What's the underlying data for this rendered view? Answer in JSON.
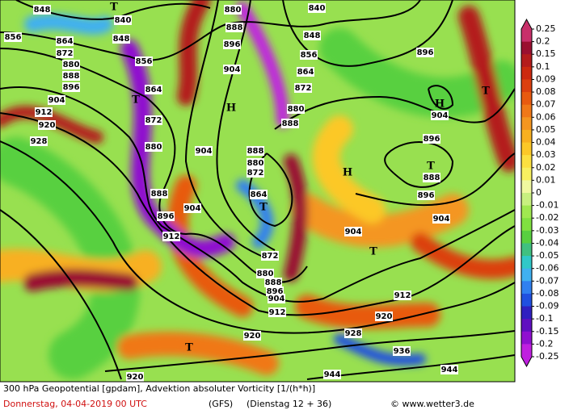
{
  "map": {
    "title": "300 hPa Geopotential [gpdam], Advektion absoluter Vorticity [1/(h*h)]",
    "date": "Donnerstag, 04-04-2019  00 UTC",
    "model": "(GFS)",
    "run": "(Dienstag 12 + 36)",
    "credit": "© www.wetter3.de",
    "colorbar": {
      "ticks": [
        0.25,
        0.2,
        0.15,
        0.1,
        0.09,
        0.08,
        0.07,
        0.06,
        0.05,
        0.04,
        0.03,
        0.02,
        0.01,
        0,
        -0.01,
        -0.02,
        -0.03,
        -0.04,
        -0.05,
        -0.06,
        -0.07,
        -0.08,
        -0.09,
        -0.1,
        -0.15,
        -0.2,
        -0.25
      ],
      "colors": [
        "#c8306a",
        "#9a1030",
        "#b41c1c",
        "#cc2a10",
        "#dc4010",
        "#e85a10",
        "#f07818",
        "#f49620",
        "#f8b020",
        "#fcc828",
        "#fce040",
        "#f8f060",
        "#f0f8a0",
        "#c8f080",
        "#a0e850",
        "#80e040",
        "#58d040",
        "#40c080",
        "#30c8c8",
        "#40b0f0",
        "#3080f0",
        "#2050e0",
        "#3020c0",
        "#6010c0",
        "#9010d0",
        "#c020e0"
      ]
    },
    "contour_labels": [
      "848",
      "840",
      "856",
      "864",
      "848",
      "872",
      "856",
      "880",
      "888",
      "896",
      "904",
      "912",
      "920",
      "928",
      "864",
      "872",
      "880",
      "888",
      "896",
      "904",
      "912",
      "880",
      "888",
      "896",
      "904",
      "904",
      "840",
      "848",
      "856",
      "864",
      "872",
      "880",
      "888",
      "888",
      "880",
      "872",
      "864",
      "872",
      "880",
      "888",
      "896",
      "904",
      "912",
      "904",
      "920",
      "928",
      "936",
      "944",
      "944",
      "920",
      "920",
      "912",
      "896",
      "904",
      "896",
      "888",
      "896",
      "904"
    ],
    "pressure_centers": [
      "T",
      "T",
      "H",
      "T",
      "H",
      "H",
      "T",
      "T",
      "T",
      "T"
    ]
  }
}
